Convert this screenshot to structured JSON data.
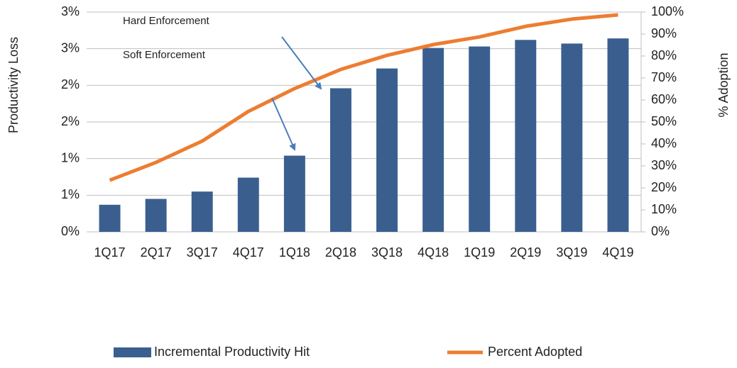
{
  "chart_data": {
    "type": "bar",
    "categories": [
      "1Q17",
      "2Q17",
      "3Q17",
      "4Q17",
      "1Q18",
      "2Q18",
      "3Q18",
      "4Q18",
      "1Q19",
      "2Q19",
      "3Q19",
      "4Q19"
    ],
    "series": [
      {
        "name": "Incremental Productivity Hit",
        "type": "bar",
        "color": "#3a5f8f",
        "values": [
          0.37,
          0.45,
          0.55,
          0.74,
          1.04,
          1.96,
          2.23,
          2.51,
          2.53,
          2.62,
          2.57,
          2.64
        ]
      },
      {
        "name": "Percent Adopted",
        "type": "line",
        "axis": "y2",
        "color": "#ed7d31",
        "values": [
          23.5,
          31.6,
          41.3,
          54.8,
          65.2,
          73.9,
          80.3,
          85.2,
          88.7,
          93.5,
          96.8,
          98.7
        ]
      }
    ],
    "y_label": "Productivity Loss",
    "y2_label": "% Adoption",
    "ylim": [
      0,
      3
    ],
    "yticks": [
      {
        "value": 0,
        "label": "0%"
      },
      {
        "value": 0.5,
        "label": "1%"
      },
      {
        "value": 1,
        "label": "1%"
      },
      {
        "value": 1.5,
        "label": "2%"
      },
      {
        "value": 2,
        "label": "2%"
      },
      {
        "value": 2.5,
        "label": "3%"
      },
      {
        "value": 3,
        "label": "3%"
      }
    ],
    "y2lim": [
      0,
      100
    ],
    "y2ticks": [
      {
        "value": 0,
        "label": "0%"
      },
      {
        "value": 10,
        "label": "10%"
      },
      {
        "value": 20,
        "label": "20%"
      },
      {
        "value": 30,
        "label": "30%"
      },
      {
        "value": 40,
        "label": "40%"
      },
      {
        "value": 50,
        "label": "50%"
      },
      {
        "value": 60,
        "label": "60%"
      },
      {
        "value": 70,
        "label": "70%"
      },
      {
        "value": 80,
        "label": "80%"
      },
      {
        "value": 90,
        "label": "90%"
      },
      {
        "value": 100,
        "label": "100%"
      }
    ],
    "annotations": [
      "Hard Enforcement",
      "Soft Enforcement"
    ],
    "grid": true,
    "legend": "bottom"
  }
}
